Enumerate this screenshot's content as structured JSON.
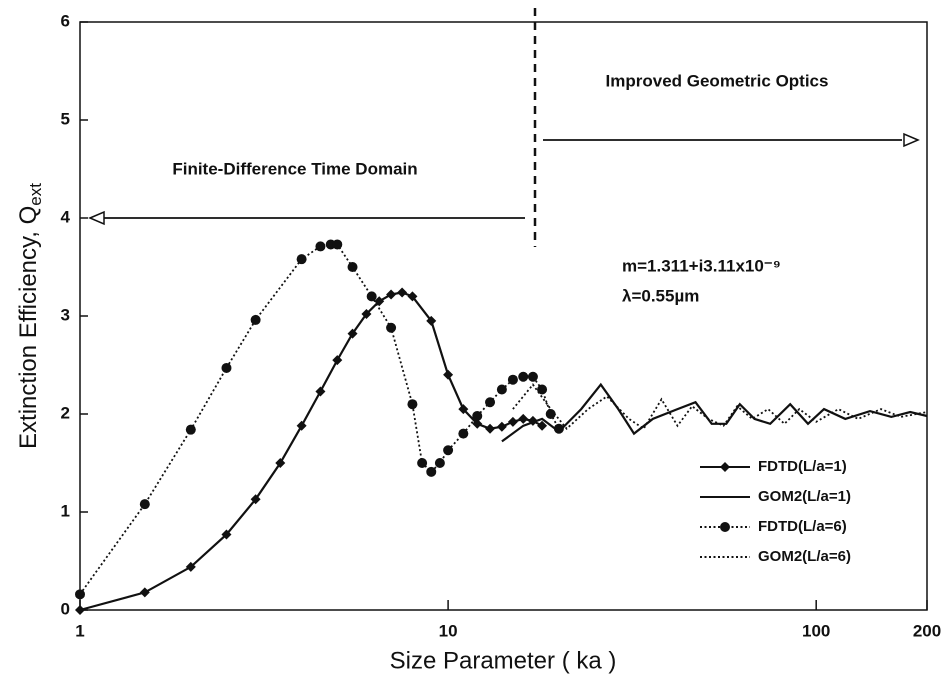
{
  "chart_data": {
    "type": "line",
    "x_label": "Size Parameter ( ka )",
    "y_label": {
      "text": "Extinction Efficiency, Q",
      "subscript": "ext"
    },
    "annotations": [
      "Finite-Difference Time Domain",
      "Improved Geometric Optics",
      "m=1.311+i3.11x10⁻⁹",
      "λ=0.55µm"
    ],
    "xscale": "log",
    "xlim": [
      1,
      200
    ],
    "ylim": [
      0,
      6
    ],
    "xticks": [
      1,
      10,
      100,
      200
    ],
    "yticks": [
      0,
      1,
      2,
      3,
      4,
      5,
      6
    ],
    "legend": "lower right",
    "series": [
      {
        "name": "FDTD(L/a=1)",
        "color": "#111111",
        "marker": "diamond",
        "dash": "solid",
        "x": [
          1,
          1.5,
          2,
          2.5,
          3,
          3.5,
          4,
          4.5,
          5,
          5.5,
          6,
          6.5,
          7,
          7.5,
          8,
          9,
          10,
          11,
          12,
          13,
          14,
          15,
          16,
          17,
          18
        ],
        "values": [
          0,
          0.18,
          0.44,
          0.77,
          1.13,
          1.5,
          1.88,
          2.23,
          2.55,
          2.82,
          3.02,
          3.15,
          3.22,
          3.24,
          3.2,
          2.95,
          2.4,
          2.05,
          1.9,
          1.85,
          1.87,
          1.92,
          1.95,
          1.93,
          1.88
        ]
      },
      {
        "name": "GOM2(L/a=1)",
        "color": "#111111",
        "marker": null,
        "dash": "solid",
        "x": [
          14,
          16,
          18,
          20,
          23,
          26,
          29,
          32,
          36,
          42,
          47,
          52,
          57,
          62,
          68,
          75,
          85,
          95,
          105,
          120,
          140,
          160,
          180,
          200
        ],
        "values": [
          1.72,
          1.88,
          1.95,
          1.82,
          2.05,
          2.3,
          2.05,
          1.8,
          1.95,
          2.05,
          2.12,
          1.9,
          1.9,
          2.1,
          1.95,
          1.9,
          2.1,
          1.9,
          2.05,
          1.95,
          2.03,
          1.97,
          2.02,
          1.98
        ]
      },
      {
        "name": "FDTD(L/a=6)",
        "color": "#111111",
        "marker": "circle",
        "dash": "dotted",
        "x": [
          1,
          1.5,
          2,
          2.5,
          3,
          4,
          4.5,
          4.8,
          5,
          5.5,
          6.2,
          7,
          8,
          8.5,
          9,
          9.5,
          10,
          11,
          12,
          13,
          14,
          15,
          16,
          17,
          18,
          19,
          20
        ],
        "values": [
          0.16,
          1.08,
          1.84,
          2.47,
          2.96,
          3.58,
          3.71,
          3.73,
          3.73,
          3.5,
          3.2,
          2.88,
          2.1,
          1.5,
          1.41,
          1.5,
          1.63,
          1.8,
          1.98,
          2.12,
          2.25,
          2.35,
          2.38,
          2.38,
          2.25,
          2.0,
          1.85
        ]
      },
      {
        "name": "GOM2(L/a=6)",
        "color": "#111111",
        "marker": null,
        "dash": "dotted",
        "x": [
          15,
          17,
          19,
          21,
          24,
          27,
          31,
          34,
          38,
          42,
          46,
          51,
          56,
          61,
          67,
          74,
          82,
          90,
          100,
          115,
          130,
          150,
          170,
          200
        ],
        "values": [
          2.05,
          2.3,
          2.05,
          1.85,
          2.05,
          2.18,
          1.95,
          1.85,
          2.15,
          1.88,
          2.08,
          1.95,
          1.88,
          2.08,
          1.95,
          2.05,
          1.9,
          2.05,
          1.92,
          2.05,
          1.95,
          2.05,
          1.97,
          2.02
        ]
      }
    ]
  }
}
